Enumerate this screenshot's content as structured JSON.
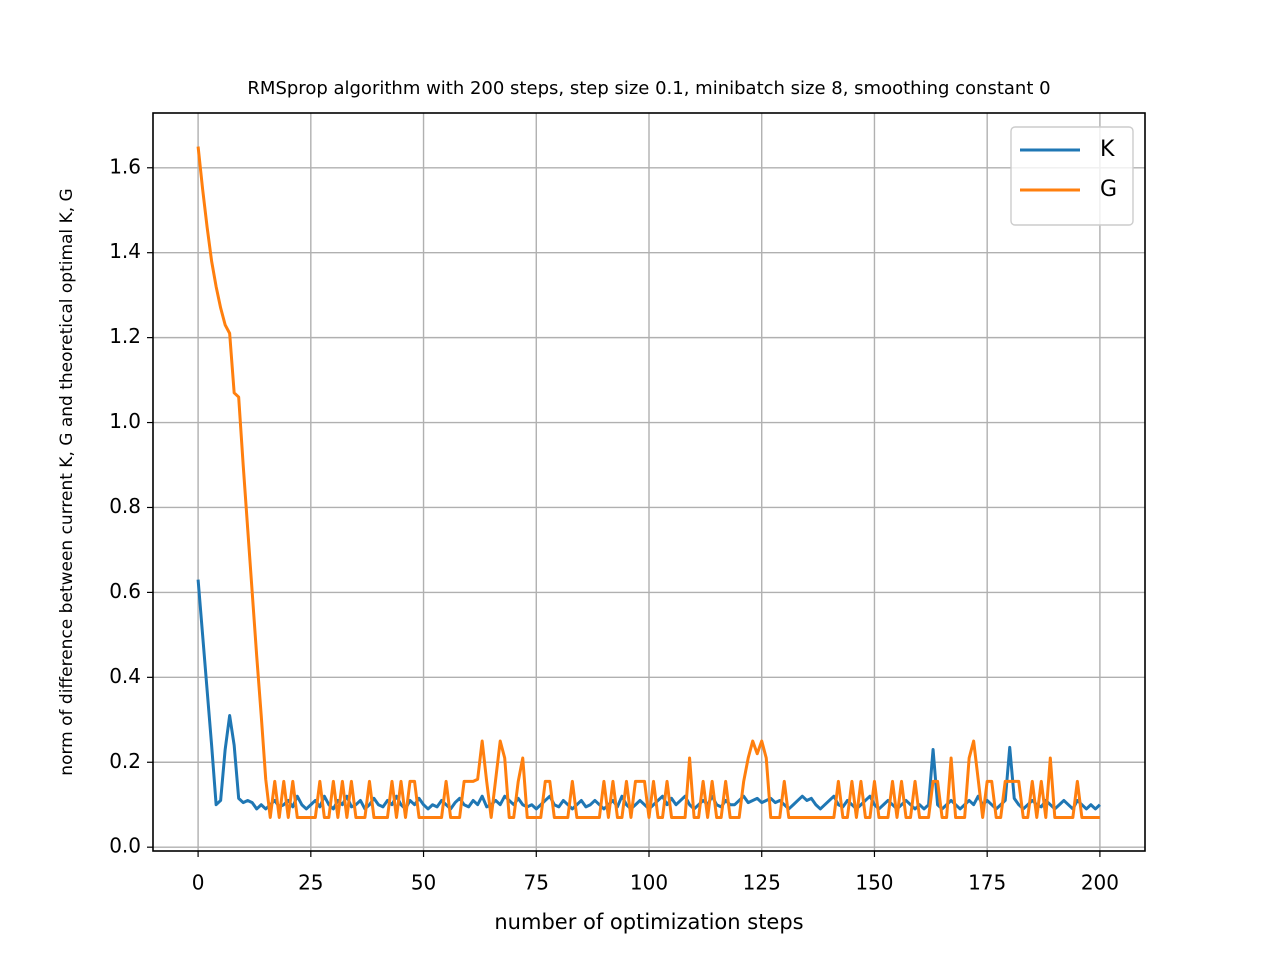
{
  "chart_data": {
    "type": "line",
    "title": "RMSprop algorithm with 200 steps, step size 0.1, minibatch size 8, smoothing constant 0",
    "xlabel": "number of optimization steps",
    "ylabel": "norm of difference between current K, G and theoretical optimal K, G",
    "x": [
      0,
      1,
      2,
      3,
      4,
      5,
      6,
      7,
      8,
      9,
      10,
      11,
      12,
      13,
      14,
      15,
      16,
      17,
      18,
      19,
      20,
      21,
      22,
      23,
      24,
      25,
      26,
      27,
      28,
      29,
      30,
      31,
      32,
      33,
      34,
      35,
      36,
      37,
      38,
      39,
      40,
      41,
      42,
      43,
      44,
      45,
      46,
      47,
      48,
      49,
      50,
      51,
      52,
      53,
      54,
      55,
      56,
      57,
      58,
      59,
      60,
      61,
      62,
      63,
      64,
      65,
      66,
      67,
      68,
      69,
      70,
      71,
      72,
      73,
      74,
      75,
      76,
      77,
      78,
      79,
      80,
      81,
      82,
      83,
      84,
      85,
      86,
      87,
      88,
      89,
      90,
      91,
      92,
      93,
      94,
      95,
      96,
      97,
      98,
      99,
      100,
      101,
      102,
      103,
      104,
      105,
      106,
      107,
      108,
      109,
      110,
      111,
      112,
      113,
      114,
      115,
      116,
      117,
      118,
      119,
      120,
      121,
      122,
      123,
      124,
      125,
      126,
      127,
      128,
      129,
      130,
      131,
      132,
      133,
      134,
      135,
      136,
      137,
      138,
      139,
      140,
      141,
      142,
      143,
      144,
      145,
      146,
      147,
      148,
      149,
      150,
      151,
      152,
      153,
      154,
      155,
      156,
      157,
      158,
      159,
      160,
      161,
      162,
      163,
      164,
      165,
      166,
      167,
      168,
      169,
      170,
      171,
      172,
      173,
      174,
      175,
      176,
      177,
      178,
      179,
      180,
      181,
      182,
      183,
      184,
      185,
      186,
      187,
      188,
      189,
      190,
      191,
      192,
      193,
      194,
      195,
      196,
      197,
      198,
      199,
      200
    ],
    "series": [
      {
        "name": "K",
        "color": "#1f77b4",
        "values": [
          0.63,
          0.5,
          0.37,
          0.24,
          0.1,
          0.11,
          0.23,
          0.31,
          0.24,
          0.115,
          0.105,
          0.11,
          0.105,
          0.09,
          0.1,
          0.09,
          0.1,
          0.11,
          0.095,
          0.1,
          0.11,
          0.095,
          0.12,
          0.1,
          0.09,
          0.1,
          0.11,
          0.095,
          0.12,
          0.1,
          0.09,
          0.11,
          0.1,
          0.12,
          0.095,
          0.1,
          0.11,
          0.09,
          0.1,
          0.115,
          0.1,
          0.095,
          0.11,
          0.1,
          0.12,
          0.1,
          0.09,
          0.11,
          0.1,
          0.115,
          0.1,
          0.09,
          0.1,
          0.095,
          0.11,
          0.1,
          0.09,
          0.105,
          0.115,
          0.1,
          0.095,
          0.11,
          0.1,
          0.12,
          0.095,
          0.1,
          0.11,
          0.1,
          0.12,
          0.11,
          0.1,
          0.115,
          0.1,
          0.095,
          0.1,
          0.09,
          0.1,
          0.11,
          0.12,
          0.1,
          0.095,
          0.11,
          0.1,
          0.09,
          0.1,
          0.11,
          0.095,
          0.1,
          0.11,
          0.1,
          0.09,
          0.1,
          0.11,
          0.095,
          0.12,
          0.1,
          0.09,
          0.1,
          0.11,
          0.1,
          0.09,
          0.1,
          0.11,
          0.12,
          0.1,
          0.115,
          0.1,
          0.11,
          0.12,
          0.1,
          0.09,
          0.1,
          0.11,
          0.1,
          0.12,
          0.1,
          0.095,
          0.11,
          0.1,
          0.1,
          0.11,
          0.12,
          0.105,
          0.11,
          0.115,
          0.105,
          0.11,
          0.115,
          0.105,
          0.11,
          0.1,
          0.09,
          0.1,
          0.11,
          0.12,
          0.11,
          0.115,
          0.1,
          0.09,
          0.1,
          0.11,
          0.12,
          0.1,
          0.095,
          0.11,
          0.1,
          0.09,
          0.1,
          0.11,
          0.12,
          0.1,
          0.09,
          0.1,
          0.11,
          0.1,
          0.09,
          0.1,
          0.11,
          0.1,
          0.09,
          0.1,
          0.09,
          0.1,
          0.23,
          0.1,
          0.09,
          0.1,
          0.11,
          0.1,
          0.09,
          0.1,
          0.11,
          0.1,
          0.12,
          0.1,
          0.11,
          0.1,
          0.09,
          0.1,
          0.11,
          0.235,
          0.115,
          0.1,
          0.09,
          0.1,
          0.11,
          0.1,
          0.095,
          0.11,
          0.1,
          0.09,
          0.1,
          0.11,
          0.1,
          0.09,
          0.11,
          0.1,
          0.09,
          0.1,
          0.09,
          0.1
        ]
      },
      {
        "name": "G",
        "color": "#ff7f0e",
        "values": [
          1.65,
          1.55,
          1.46,
          1.38,
          1.32,
          1.27,
          1.23,
          1.21,
          1.07,
          1.06,
          0.9,
          0.75,
          0.6,
          0.45,
          0.31,
          0.16,
          0.07,
          0.155,
          0.07,
          0.155,
          0.07,
          0.155,
          0.07,
          0.07,
          0.07,
          0.07,
          0.07,
          0.155,
          0.07,
          0.07,
          0.155,
          0.07,
          0.155,
          0.07,
          0.155,
          0.07,
          0.07,
          0.07,
          0.155,
          0.07,
          0.07,
          0.07,
          0.07,
          0.155,
          0.07,
          0.155,
          0.07,
          0.155,
          0.155,
          0.07,
          0.07,
          0.07,
          0.07,
          0.07,
          0.07,
          0.155,
          0.07,
          0.07,
          0.07,
          0.155,
          0.155,
          0.155,
          0.16,
          0.25,
          0.155,
          0.07,
          0.16,
          0.25,
          0.21,
          0.07,
          0.07,
          0.155,
          0.21,
          0.07,
          0.07,
          0.07,
          0.07,
          0.155,
          0.155,
          0.07,
          0.07,
          0.07,
          0.07,
          0.155,
          0.07,
          0.07,
          0.07,
          0.07,
          0.07,
          0.07,
          0.155,
          0.07,
          0.155,
          0.07,
          0.07,
          0.155,
          0.07,
          0.155,
          0.155,
          0.155,
          0.07,
          0.155,
          0.07,
          0.07,
          0.155,
          0.07,
          0.07,
          0.07,
          0.07,
          0.21,
          0.07,
          0.07,
          0.155,
          0.07,
          0.155,
          0.07,
          0.07,
          0.155,
          0.07,
          0.07,
          0.07,
          0.155,
          0.21,
          0.25,
          0.22,
          0.25,
          0.21,
          0.07,
          0.07,
          0.07,
          0.155,
          0.07,
          0.07,
          0.07,
          0.07,
          0.07,
          0.07,
          0.07,
          0.07,
          0.07,
          0.07,
          0.07,
          0.155,
          0.07,
          0.07,
          0.155,
          0.07,
          0.155,
          0.07,
          0.07,
          0.155,
          0.07,
          0.07,
          0.07,
          0.155,
          0.07,
          0.155,
          0.07,
          0.07,
          0.155,
          0.07,
          0.07,
          0.07,
          0.155,
          0.155,
          0.07,
          0.07,
          0.21,
          0.07,
          0.07,
          0.07,
          0.21,
          0.25,
          0.16,
          0.07,
          0.155,
          0.155,
          0.07,
          0.07,
          0.155,
          0.155,
          0.155,
          0.155,
          0.07,
          0.07,
          0.155,
          0.07,
          0.155,
          0.07,
          0.21,
          0.07,
          0.07,
          0.07,
          0.07,
          0.07,
          0.155,
          0.07,
          0.07,
          0.07,
          0.07,
          0.07
        ]
      }
    ],
    "xlim": [
      -10,
      210
    ],
    "ylim": [
      -0.009,
      1.729
    ],
    "xticks": [
      0,
      25,
      50,
      75,
      100,
      125,
      150,
      175,
      200
    ],
    "yticks": [
      {
        "value": 0,
        "label": "0.0"
      },
      0.2,
      0.4,
      0.6,
      0.8,
      {
        "value": 1,
        "label": "1.0"
      },
      1.2,
      1.4,
      1.6
    ],
    "grid": true,
    "legend": "upper right"
  }
}
